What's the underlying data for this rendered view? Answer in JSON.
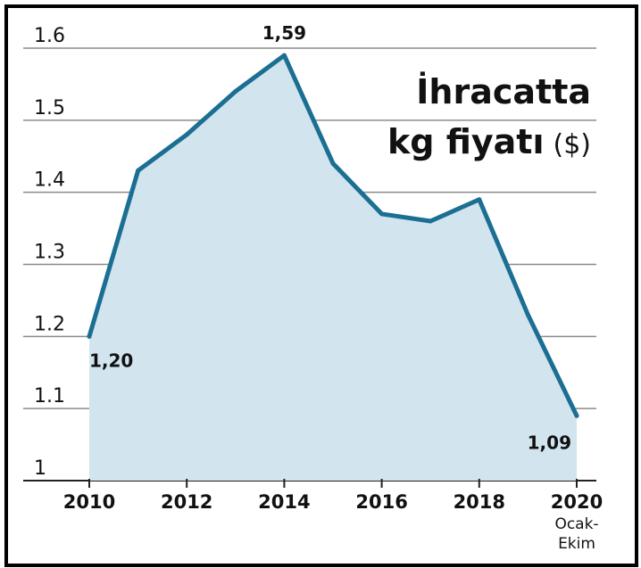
{
  "chart_data": {
    "type": "area",
    "title_line1": "İhracatta",
    "title_line2": "kg fiyatı",
    "title_unit": "($)",
    "x": [
      2010,
      2011,
      2012,
      2013,
      2014,
      2015,
      2016,
      2017,
      2018,
      2019,
      2020
    ],
    "values": [
      1.2,
      1.43,
      1.48,
      1.54,
      1.59,
      1.44,
      1.37,
      1.36,
      1.39,
      1.23,
      1.09
    ],
    "ylim": [
      1,
      1.6
    ],
    "yticks": [
      "1",
      "1.1",
      "1.2",
      "1.3",
      "1.4",
      "1.5",
      "1.6"
    ],
    "xticks": [
      "2010",
      "2012",
      "2014",
      "2016",
      "2018",
      "2020"
    ],
    "x_last_sublabel": [
      "Ocak-",
      "Ekim"
    ],
    "data_labels": [
      {
        "x": 2010,
        "text": "1,20"
      },
      {
        "x": 2014,
        "text": "1,59"
      },
      {
        "x": 2020,
        "text": "1,09"
      }
    ],
    "grid": true,
    "colors": {
      "line": "#1b6f93",
      "fill": "#d2e4ee",
      "grid": "#8c8c8c"
    }
  }
}
